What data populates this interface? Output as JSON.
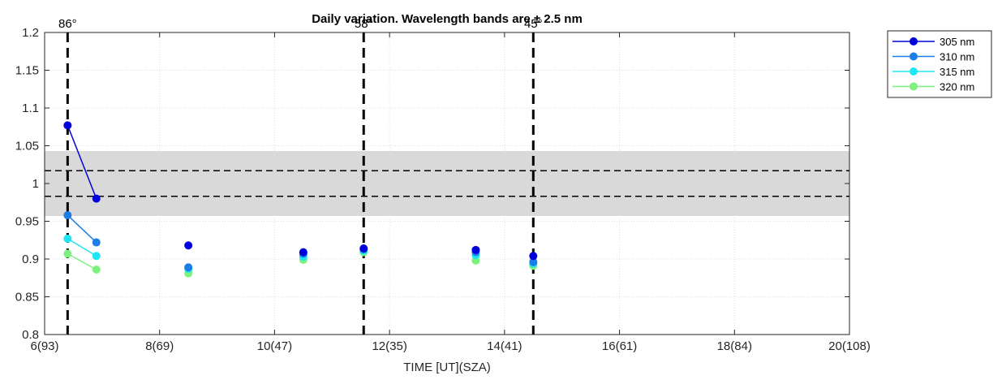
{
  "chart_data": {
    "type": "line",
    "title": "Daily variation. Wavelength bands are ± 2.5 nm",
    "xlabel": "TIME [UT](SZA)",
    "ylabel": "",
    "xlim": [
      6,
      20
    ],
    "ylim": [
      0.8,
      1.2
    ],
    "x_ticks": [
      {
        "value": 6,
        "label": "6(93)"
      },
      {
        "value": 8,
        "label": "8(69)"
      },
      {
        "value": 10,
        "label": "10(47)"
      },
      {
        "value": 12,
        "label": "12(35)"
      },
      {
        "value": 14,
        "label": "14(41)"
      },
      {
        "value": 16,
        "label": "16(61)"
      },
      {
        "value": 18,
        "label": "18(84)"
      },
      {
        "value": 20,
        "label": "20(108)"
      }
    ],
    "y_ticks": [
      {
        "value": 0.8,
        "label": "0.8"
      },
      {
        "value": 0.85,
        "label": "0.85"
      },
      {
        "value": 0.9,
        "label": "0.9"
      },
      {
        "value": 0.95,
        "label": "0.95"
      },
      {
        "value": 1.0,
        "label": "1"
      },
      {
        "value": 1.05,
        "label": "1.05"
      },
      {
        "value": 1.1,
        "label": "1.1"
      },
      {
        "value": 1.15,
        "label": "1.15"
      },
      {
        "value": 1.2,
        "label": "1.2"
      }
    ],
    "grid": true,
    "legend_position": "outside-top-right",
    "shaded_band": {
      "y_min": 0.957,
      "y_max": 1.043,
      "color": "#d9d9d9"
    },
    "dashed_hlines": [
      1.017,
      0.983
    ],
    "vertical_markers": [
      {
        "x": 6.4,
        "label": "86°"
      },
      {
        "x": 11.55,
        "label": "58°"
      },
      {
        "x": 14.5,
        "label": "45°"
      }
    ],
    "series": [
      {
        "name": "305 nm",
        "color": "#0000dd",
        "points": [
          [
            6.4,
            1.077
          ],
          [
            6.9,
            0.98
          ],
          [
            8.5,
            0.918
          ],
          [
            10.5,
            0.909
          ],
          [
            11.55,
            0.914
          ],
          [
            13.5,
            0.912
          ],
          [
            14.5,
            0.904
          ]
        ],
        "connect": [
          [
            0,
            1
          ]
        ]
      },
      {
        "name": "310 nm",
        "color": "#1a7ee6",
        "points": [
          [
            6.4,
            0.958
          ],
          [
            6.9,
            0.922
          ],
          [
            8.5,
            0.889
          ],
          [
            10.5,
            0.907
          ],
          [
            11.55,
            0.913
          ],
          [
            13.5,
            0.909
          ],
          [
            14.5,
            0.896
          ]
        ],
        "connect": [
          [
            0,
            1
          ]
        ]
      },
      {
        "name": "315 nm",
        "color": "#1ee6f0",
        "points": [
          [
            6.4,
            0.927
          ],
          [
            6.9,
            0.904
          ],
          [
            8.5,
            0.887
          ],
          [
            10.5,
            0.903
          ],
          [
            11.55,
            0.911
          ],
          [
            13.5,
            0.905
          ],
          [
            14.5,
            0.894
          ]
        ],
        "connect": [
          [
            0,
            1
          ]
        ]
      },
      {
        "name": "320 nm",
        "color": "#7df07d",
        "points": [
          [
            6.4,
            0.907
          ],
          [
            6.9,
            0.886
          ],
          [
            8.5,
            0.881
          ],
          [
            10.5,
            0.899
          ],
          [
            11.55,
            0.909
          ],
          [
            13.5,
            0.898
          ],
          [
            14.5,
            0.891
          ]
        ],
        "connect": [
          [
            0,
            1
          ]
        ]
      }
    ]
  }
}
